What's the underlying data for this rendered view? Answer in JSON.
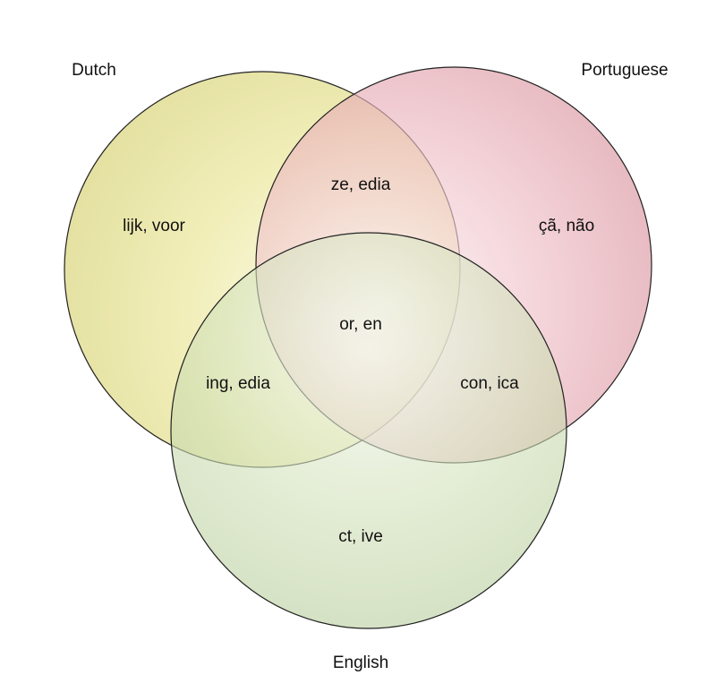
{
  "sets": {
    "dutch": {
      "label": "Dutch",
      "color": "#e6e28a"
    },
    "portuguese": {
      "label": "Portuguese",
      "color": "#dc8a97"
    },
    "english": {
      "label": "English",
      "color": "#b3cc8c"
    }
  },
  "regions": {
    "dutch_only": "lijk, voor",
    "portuguese_only": "çã, não",
    "english_only": "ct, ive",
    "dutch_portuguese": "ze, edia",
    "dutch_english": "ing, edia",
    "portuguese_english": "con, ica",
    "all_three": "or, en"
  },
  "stroke_color": "#222222"
}
